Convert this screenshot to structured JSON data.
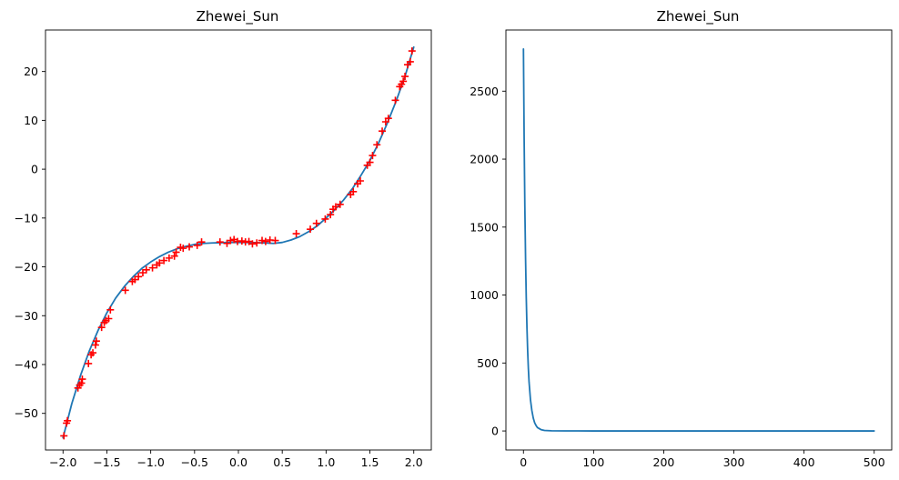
{
  "colors": {
    "line": "#1f77b4",
    "marker": "#ff0000",
    "axes": "#000000"
  },
  "chart_data": [
    {
      "type": "line",
      "title": "Zhewei_Sun",
      "xlabel": "",
      "ylabel": "",
      "xlim": [
        -2.2,
        2.2
      ],
      "ylim": [
        -57.5,
        28.5
      ],
      "xticks": [
        -2.0,
        -1.5,
        -1.0,
        -0.5,
        0.0,
        0.5,
        1.0,
        1.5,
        2.0
      ],
      "xtick_labels": [
        "−2.0",
        "−1.5",
        "−1.0",
        "−0.5",
        "0.0",
        "0.5",
        "1.0",
        "1.5",
        "2.0"
      ],
      "yticks": [
        -50,
        -40,
        -30,
        -20,
        -10,
        0,
        10,
        20
      ],
      "ytick_labels": [
        "−50",
        "−40",
        "−30",
        "−20",
        "−10",
        "0",
        "10",
        "20"
      ],
      "grid": false,
      "series": [
        {
          "kind": "line",
          "color": "#1f77b4",
          "x": [
            -2.0,
            -1.9,
            -1.8,
            -1.7,
            -1.6,
            -1.5,
            -1.4,
            -1.3,
            -1.2,
            -1.1,
            -1.0,
            -0.9,
            -0.8,
            -0.7,
            -0.6,
            -0.5,
            -0.4,
            -0.3,
            -0.2,
            -0.1,
            0.0,
            0.1,
            0.2,
            0.3,
            0.4,
            0.5,
            0.6,
            0.7,
            0.8,
            0.9,
            1.0,
            1.1,
            1.2,
            1.3,
            1.4,
            1.5,
            1.6,
            1.7,
            1.8,
            1.9,
            2.0
          ],
          "y": [
            -55.0,
            -48.0,
            -42.2,
            -37.2,
            -33.0,
            -29.4,
            -26.4,
            -24.0,
            -22.0,
            -20.3,
            -19.0,
            -17.9,
            -17.0,
            -16.3,
            -15.8,
            -15.4,
            -15.2,
            -15.1,
            -15.05,
            -15.0,
            -15.0,
            -15.0,
            -15.05,
            -15.1,
            -15.2,
            -15.0,
            -14.5,
            -13.8,
            -12.8,
            -11.6,
            -10.0,
            -8.3,
            -6.3,
            -4.0,
            -1.2,
            1.8,
            5.4,
            9.5,
            14.0,
            19.0,
            25.0
          ]
        },
        {
          "kind": "scatter",
          "marker": "+",
          "color": "#ff0000",
          "x": [
            -1.99,
            -1.96,
            -1.95,
            -1.83,
            -1.81,
            -1.79,
            -1.78,
            -1.71,
            -1.68,
            -1.66,
            -1.63,
            -1.62,
            -1.56,
            -1.53,
            -1.51,
            -1.48,
            -1.46,
            -1.29,
            -1.21,
            -1.18,
            -1.14,
            -1.09,
            -1.05,
            -0.98,
            -0.93,
            -0.9,
            -0.85,
            -0.79,
            -0.73,
            -0.71,
            -0.66,
            -0.63,
            -0.56,
            -0.47,
            -0.42,
            -0.21,
            -0.13,
            -0.09,
            -0.05,
            -0.01,
            0.04,
            0.08,
            0.12,
            0.16,
            0.21,
            0.27,
            0.31,
            0.36,
            0.42,
            0.66,
            0.82,
            0.89,
            0.99,
            1.05,
            1.08,
            1.11,
            1.16,
            1.28,
            1.31,
            1.36,
            1.39,
            1.47,
            1.5,
            1.53,
            1.58,
            1.64,
            1.68,
            1.71,
            1.79,
            1.84,
            1.86,
            1.88,
            1.9,
            1.93,
            1.96,
            1.98
          ],
          "y": [
            -54.6,
            -52.0,
            -51.5,
            -44.8,
            -44.2,
            -43.8,
            -43.0,
            -39.8,
            -38.0,
            -37.6,
            -36.0,
            -35.2,
            -32.4,
            -31.4,
            -31.0,
            -30.6,
            -28.8,
            -24.8,
            -23.0,
            -22.6,
            -22.0,
            -21.2,
            -20.6,
            -20.2,
            -19.6,
            -19.2,
            -18.7,
            -18.2,
            -17.8,
            -17.0,
            -16.0,
            -16.2,
            -15.9,
            -15.6,
            -14.9,
            -14.9,
            -15.2,
            -14.6,
            -14.4,
            -14.8,
            -14.7,
            -14.9,
            -14.8,
            -15.3,
            -15.1,
            -14.6,
            -14.8,
            -14.5,
            -14.6,
            -13.2,
            -12.3,
            -11.1,
            -10.2,
            -9.3,
            -8.2,
            -7.7,
            -7.2,
            -5.2,
            -4.6,
            -3.0,
            -2.4,
            0.8,
            1.4,
            2.8,
            5.0,
            7.8,
            9.7,
            10.4,
            14.1,
            16.9,
            17.4,
            18.0,
            19.0,
            21.4,
            22.0,
            24.2
          ]
        }
      ]
    },
    {
      "type": "line",
      "title": "Zhewei_Sun",
      "xlabel": "",
      "ylabel": "",
      "xlim": [
        -25,
        525
      ],
      "ylim": [
        -140,
        2950
      ],
      "xticks": [
        0,
        100,
        200,
        300,
        400,
        500
      ],
      "xtick_labels": [
        "0",
        "100",
        "200",
        "300",
        "400",
        "500"
      ],
      "yticks": [
        0,
        500,
        1000,
        1500,
        2000,
        2500
      ],
      "ytick_labels": [
        "0",
        "500",
        "1000",
        "1500",
        "2000",
        "2500"
      ],
      "grid": false,
      "series": [
        {
          "kind": "line",
          "color": "#1f77b4",
          "x": [
            0,
            1,
            2,
            3,
            4,
            5,
            6,
            7,
            8,
            10,
            12,
            14,
            16,
            18,
            20,
            25,
            30,
            40,
            60,
            100,
            200,
            300,
            400,
            500
          ],
          "y": [
            2810,
            2150,
            1650,
            1270,
            980,
            760,
            590,
            460,
            360,
            230,
            150,
            95,
            60,
            40,
            25,
            10,
            4,
            1.5,
            0.5,
            0.2,
            0.1,
            0.1,
            0.1,
            0.1
          ]
        }
      ]
    }
  ]
}
